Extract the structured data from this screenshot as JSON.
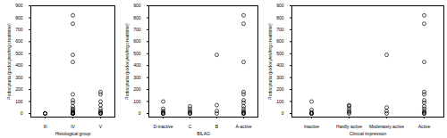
{
  "chart_data": [
    {
      "type": "scatter",
      "xlabel": "Histological group",
      "ylabel": "Podocyturia (podocytes/mg creatinine)",
      "categories": [
        "III",
        "IV",
        "V"
      ],
      "values": [
        [
          0,
          0,
          2
        ],
        [
          820,
          750,
          490,
          430,
          160,
          110,
          90,
          60,
          40,
          30,
          20,
          10,
          5,
          0,
          0,
          0,
          0,
          0
        ],
        [
          180,
          160,
          100,
          70,
          40,
          20,
          10,
          0,
          0,
          0
        ]
      ],
      "ylim": [
        -30,
        900
      ],
      "yticks": [
        0,
        100,
        200,
        300,
        400,
        500,
        600,
        700,
        800,
        900
      ],
      "color": "#000000",
      "marker": "circle-open"
    },
    {
      "type": "scatter",
      "xlabel": "BILAG",
      "ylabel": "Podocyturia (podocytes/mg creatinine)",
      "categories": [
        "D-inactive",
        "C",
        "B",
        "A-active"
      ],
      "values": [
        [
          100,
          40,
          20,
          10,
          0,
          0,
          0
        ],
        [
          60,
          40,
          20,
          10,
          0,
          0
        ],
        [
          490,
          70,
          20,
          0
        ],
        [
          820,
          750,
          430,
          180,
          160,
          110,
          90,
          60,
          40,
          20,
          10,
          0,
          0,
          0
        ]
      ],
      "ylim": [
        -30,
        900
      ],
      "yticks": [
        0,
        100,
        200,
        300,
        400,
        500,
        600,
        700,
        800,
        900
      ],
      "color": "#000000",
      "marker": "circle-open"
    },
    {
      "type": "scatter",
      "xlabel": "Clinical impression",
      "ylabel": "Podocyturia (podocytes/mg creatinine)",
      "categories": [
        "Inactive",
        "Hardly active",
        "Moderately active",
        "Active"
      ],
      "values": [
        [
          100,
          30,
          10,
          0,
          0,
          0
        ],
        [
          70,
          60,
          40,
          20,
          10,
          0
        ],
        [
          490,
          50,
          20,
          0
        ],
        [
          820,
          750,
          430,
          180,
          160,
          110,
          90,
          60,
          40,
          20,
          10,
          0,
          0
        ]
      ],
      "ylim": [
        -30,
        900
      ],
      "yticks": [
        0,
        100,
        200,
        300,
        400,
        500,
        600,
        700,
        800,
        900
      ],
      "color": "#000000",
      "marker": "circle-open"
    }
  ]
}
